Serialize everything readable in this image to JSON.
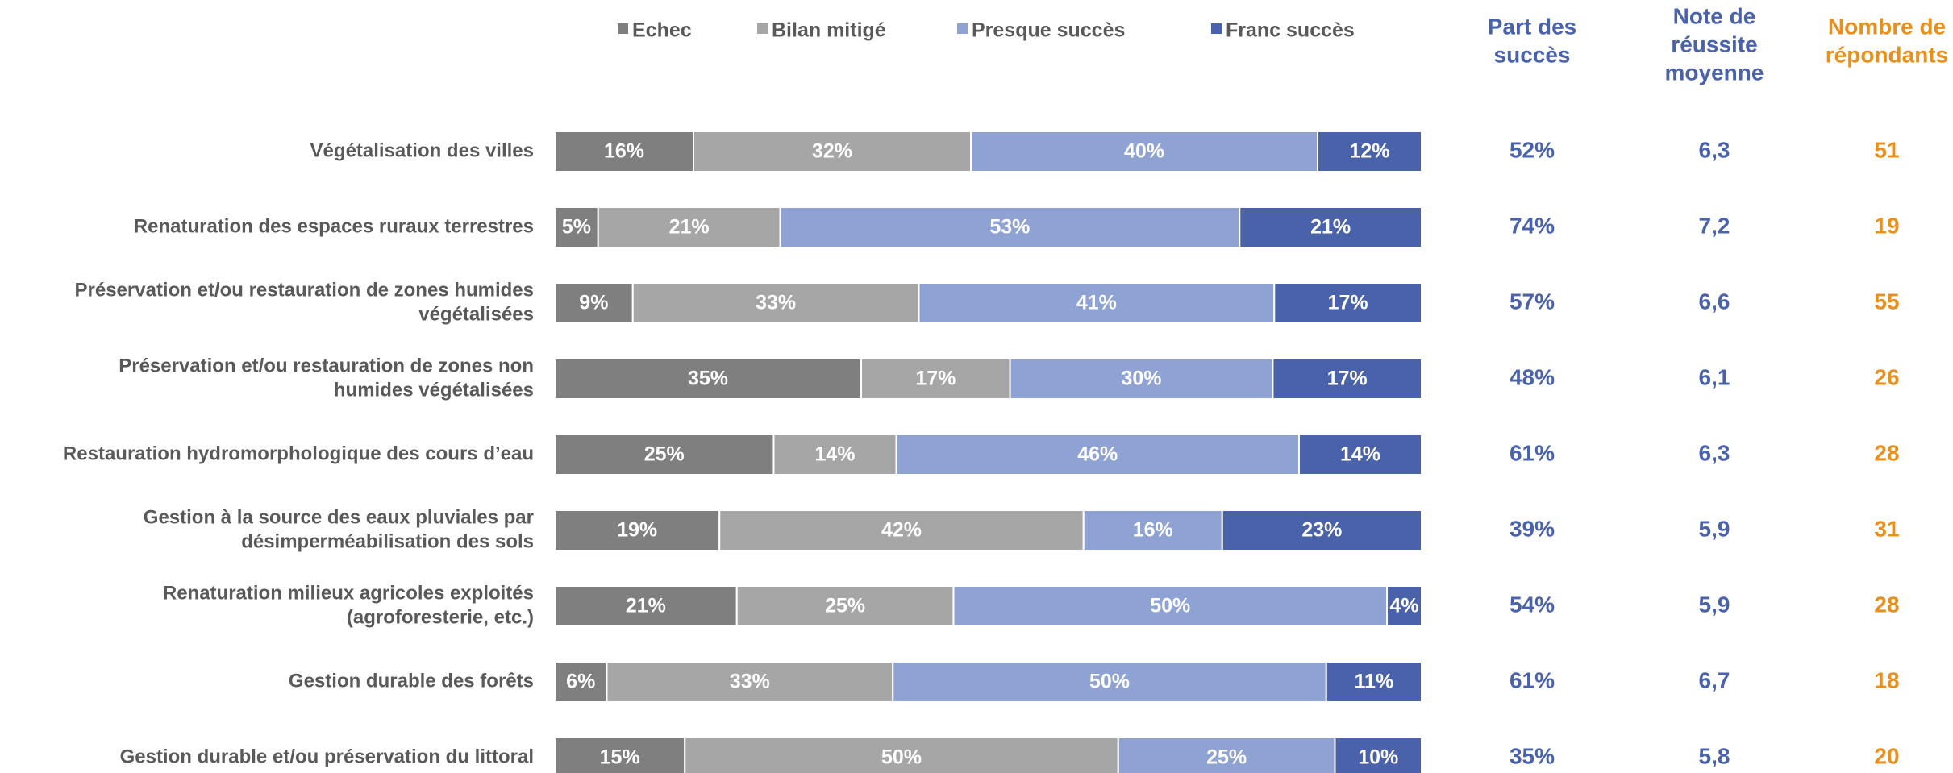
{
  "chart_data": {
    "type": "bar",
    "orientation": "horizontal",
    "stacked": true,
    "normalized_percent": true,
    "legend_position": "top",
    "grid": false,
    "title": "",
    "xlabel": "",
    "ylabel": "",
    "categories": [
      [
        "Végétalisation des villes"
      ],
      [
        "Renaturation des espaces ruraux terrestres"
      ],
      [
        "Préservation et/ou restauration de zones humides",
        "végétalisées"
      ],
      [
        "Préservation et/ou restauration de zones non",
        "humides végétalisées"
      ],
      [
        "Restauration hydromorphologique des cours d’eau"
      ],
      [
        "Gestion à la source des eaux pluviales par",
        "désimperméabilisation des sols"
      ],
      [
        "Renaturation milieux agricoles exploités",
        "(agroforesterie, etc.)"
      ],
      [
        "Gestion durable des forêts"
      ],
      [
        "Gestion durable et/ou préservation du littoral"
      ]
    ],
    "series": [
      {
        "name": "Echec",
        "color": "#7f7f7f",
        "values": [
          16,
          5,
          9,
          35,
          25,
          19,
          21,
          6,
          15
        ]
      },
      {
        "name": "Bilan mitigé",
        "color": "#a6a6a6",
        "values": [
          32,
          21,
          33,
          17,
          14,
          42,
          25,
          33,
          50
        ]
      },
      {
        "name": "Presque succès",
        "color": "#8fa2d4",
        "values": [
          40,
          53,
          41,
          30,
          46,
          16,
          50,
          50,
          25
        ]
      },
      {
        "name": "Franc succès",
        "color": "#4a62aa",
        "values": [
          12,
          21,
          17,
          17,
          14,
          23,
          4,
          11,
          10
        ]
      }
    ],
    "side_columns": [
      {
        "header": [
          "Part des",
          "succès"
        ],
        "color": "#4a62aa",
        "values": [
          "52%",
          "74%",
          "57%",
          "48%",
          "61%",
          "39%",
          "54%",
          "61%",
          "35%"
        ]
      },
      {
        "header": [
          "Note de",
          "réussite",
          "moyenne"
        ],
        "color": "#4a62aa",
        "values": [
          "6,3",
          "7,2",
          "6,6",
          "6,1",
          "6,3",
          "5,9",
          "5,9",
          "6,7",
          "5,8"
        ]
      },
      {
        "header": [
          "Nombre de",
          "répondants"
        ],
        "color": "#e8901e",
        "values": [
          "51",
          "19",
          "55",
          "26",
          "28",
          "31",
          "28",
          "18",
          "20"
        ]
      }
    ]
  }
}
